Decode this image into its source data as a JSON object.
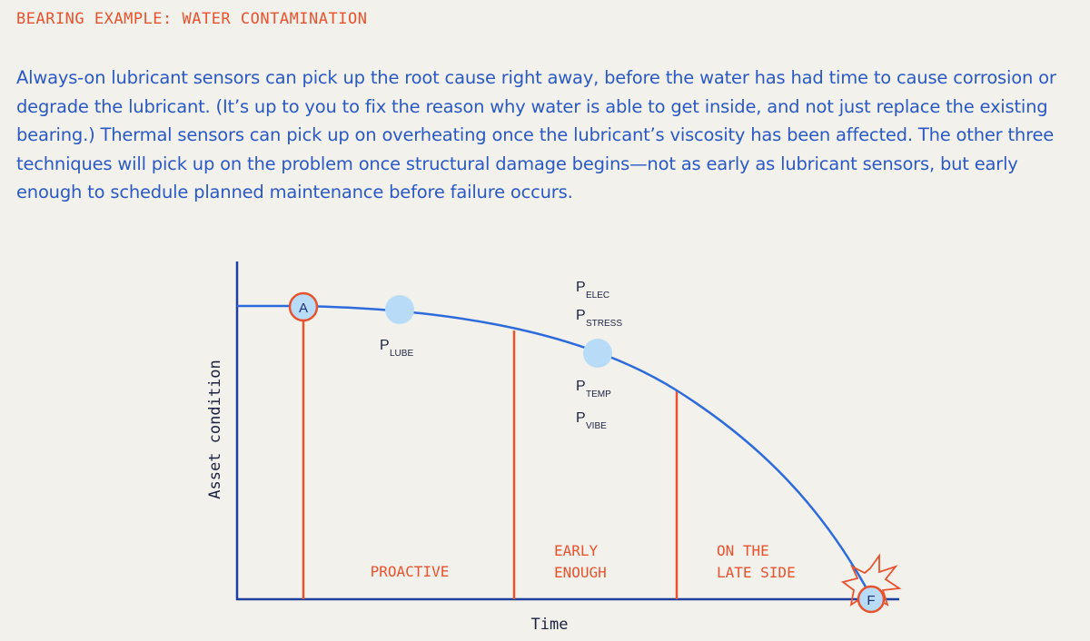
{
  "header": {
    "eyebrow": "BEARING EXAMPLE: WATER CONTAMINATION"
  },
  "intro": {
    "text": "Always-on lubricant sensors can pick up the root cause right away, before the water has had time to cause corrosion or degrade the lubricant. (It’s up to you to fix the reason why water is able to get inside, and not just replace the existing bearing.) Thermal sensors can pick up on overheating once the lubricant’s viscosity has been affected. The other three techniques will pick up on the problem once structural damage begins—not as early as lubricant sensors, but early enough to schedule planned maintenance before failure occurs."
  },
  "diagram": {
    "y_axis_label": "Asset condition",
    "x_axis_label": "Time",
    "point_a_label": "A",
    "point_f_label": "F",
    "p_lube": {
      "main": "P",
      "sub": "LUBE"
    },
    "p_elec": {
      "main": "P",
      "sub": "ELEC"
    },
    "p_stress": {
      "main": "P",
      "sub": "STRESS"
    },
    "p_temp": {
      "main": "P",
      "sub": "TEMP"
    },
    "p_vibe": {
      "main": "P",
      "sub": "VIBE"
    },
    "zone_proactive": "PROACTIVE",
    "zone_early_line1": "EARLY",
    "zone_early_line2": "ENOUGH",
    "zone_late_line1": "ON THE",
    "zone_late_line2": "LATE SIDE"
  },
  "colors": {
    "axis": "#1f3f9e",
    "curve": "#2d6bdc",
    "marker_line": "#e8532e",
    "sensor_dot": "#b8dcf7",
    "zone_text": "#e8532e",
    "intro_text": "#2a59c6",
    "background": "#f3f1ec"
  }
}
